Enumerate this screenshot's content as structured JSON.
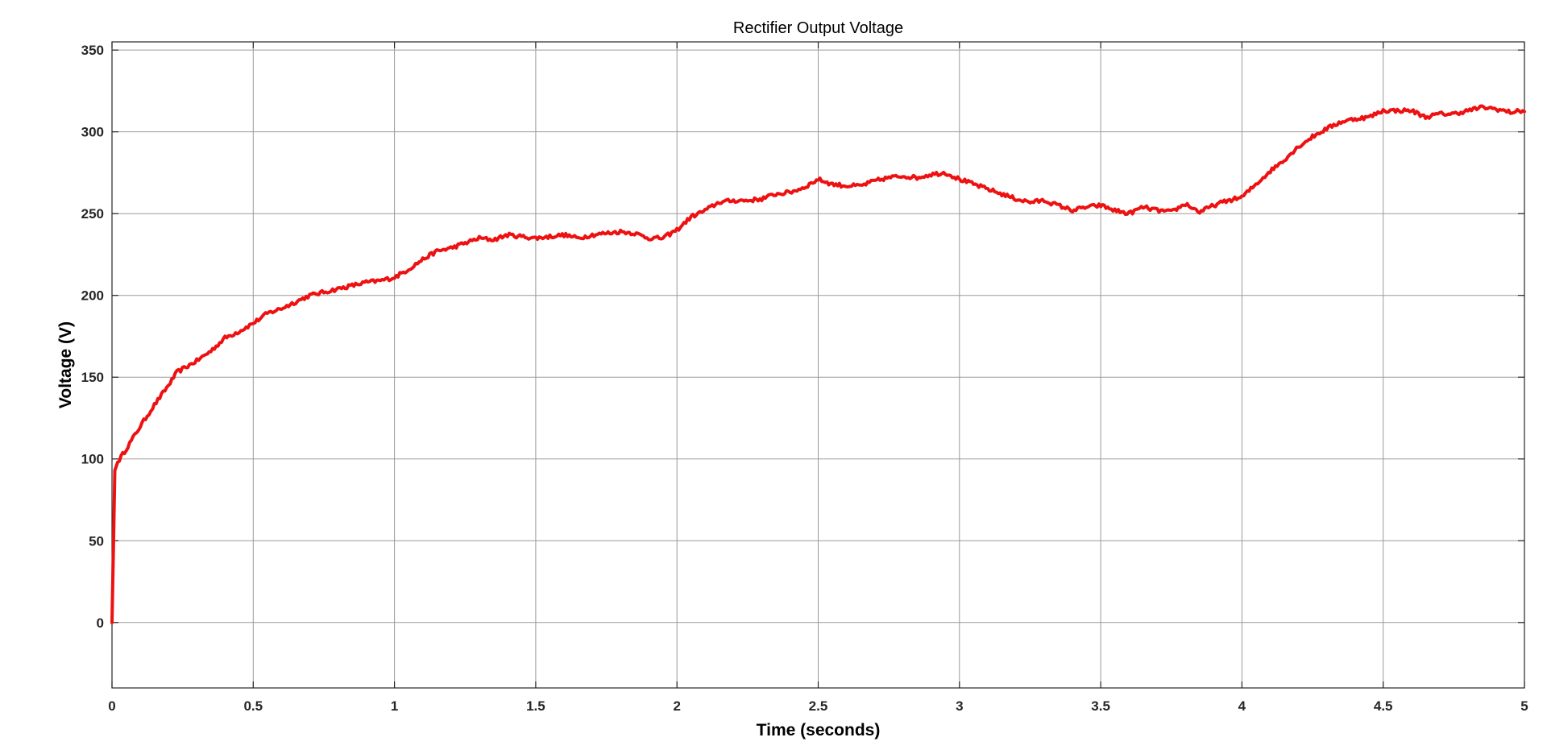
{
  "chart_data": {
    "type": "line",
    "title": "Rectifier Output Voltage",
    "xlabel": "Time (seconds)",
    "ylabel": "Voltage (V)",
    "xlim": [
      0,
      5
    ],
    "ylim": [
      -40,
      355
    ],
    "xticks": [
      0,
      0.5,
      1,
      1.5,
      2,
      2.5,
      3,
      3.5,
      4,
      4.5,
      5
    ],
    "xtick_labels": [
      "0",
      "0.5",
      "1",
      "1.5",
      "2",
      "2.5",
      "3",
      "3.5",
      "4",
      "4.5",
      "5"
    ],
    "yticks": [
      0,
      50,
      100,
      150,
      200,
      250,
      300,
      350
    ],
    "ytick_labels": [
      "0",
      "50",
      "100",
      "150",
      "200",
      "250",
      "300",
      "350"
    ],
    "grid": true,
    "series": [
      {
        "color": "#ee1111",
        "x": [
          0,
          0.01,
          0.02,
          0.05,
          0.1,
          0.15,
          0.2,
          0.23,
          0.3,
          0.35,
          0.4,
          0.45,
          0.5,
          0.55,
          0.6,
          0.65,
          0.7,
          0.75,
          0.8,
          0.85,
          0.9,
          0.95,
          1.0,
          1.05,
          1.1,
          1.15,
          1.2,
          1.25,
          1.3,
          1.35,
          1.4,
          1.45,
          1.5,
          1.55,
          1.6,
          1.65,
          1.7,
          1.75,
          1.8,
          1.85,
          1.9,
          1.95,
          2.0,
          2.05,
          2.1,
          2.15,
          2.2,
          2.25,
          2.3,
          2.35,
          2.4,
          2.45,
          2.5,
          2.55,
          2.6,
          2.65,
          2.7,
          2.75,
          2.8,
          2.85,
          2.9,
          2.95,
          3.0,
          3.05,
          3.1,
          3.15,
          3.2,
          3.25,
          3.3,
          3.35,
          3.4,
          3.45,
          3.5,
          3.55,
          3.6,
          3.65,
          3.7,
          3.75,
          3.8,
          3.85,
          3.9,
          3.95,
          4.0,
          4.05,
          4.1,
          4.15,
          4.2,
          4.25,
          4.3,
          4.35,
          4.4,
          4.45,
          4.5,
          4.55,
          4.6,
          4.65,
          4.7,
          4.75,
          4.8,
          4.85,
          4.9,
          4.95,
          5.0
        ],
        "values": [
          0,
          93,
          98,
          106,
          120,
          133,
          145,
          153,
          160,
          166,
          174,
          178,
          183,
          189,
          192,
          196,
          200,
          202,
          204,
          206,
          208,
          209,
          211,
          216,
          222,
          227,
          229,
          232,
          235,
          234,
          237,
          236,
          235,
          236,
          237,
          235,
          237,
          238,
          239,
          238,
          235,
          235,
          240,
          248,
          252,
          257,
          258,
          258,
          259,
          262,
          263,
          266,
          271,
          268,
          267,
          267,
          270,
          272,
          273,
          272,
          274,
          275,
          271,
          268,
          265,
          262,
          259,
          257,
          258,
          255,
          252,
          254,
          255,
          252,
          250,
          254,
          252,
          251,
          256,
          251,
          255,
          258,
          260,
          268,
          276,
          283,
          291,
          297,
          302,
          306,
          308,
          309,
          313,
          313,
          313,
          309,
          311,
          311,
          313,
          315,
          314,
          312,
          313
        ]
      }
    ]
  }
}
